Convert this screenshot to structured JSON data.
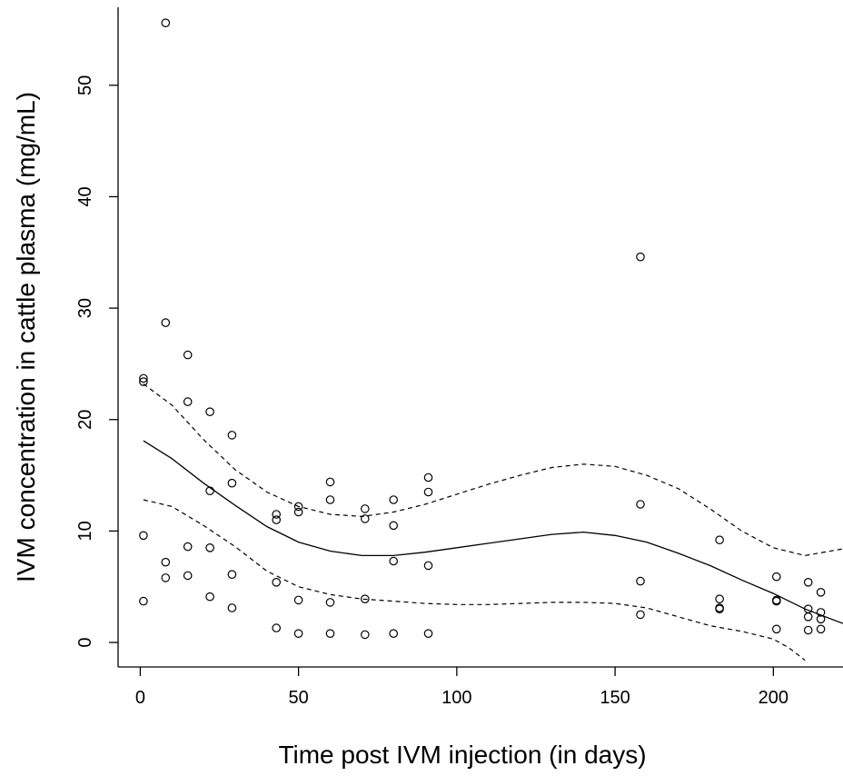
{
  "chart_data": {
    "type": "scatter",
    "xlabel": "Time post IVM injection (in days)",
    "ylabel": "IVM concentration in cattle plasma (mg/mL)",
    "xlim": [
      -7,
      222
    ],
    "ylim": [
      -2.2,
      57
    ],
    "x_ticks": [
      0,
      50,
      100,
      150,
      200
    ],
    "y_ticks": [
      0,
      10,
      20,
      30,
      40,
      50
    ],
    "grid": false,
    "legend": "none",
    "points": [
      [
        1,
        23.7
      ],
      [
        1,
        23.4
      ],
      [
        1,
        9.6
      ],
      [
        1,
        3.7
      ],
      [
        8,
        55.6
      ],
      [
        8,
        28.7
      ],
      [
        8,
        7.2
      ],
      [
        8,
        5.8
      ],
      [
        15,
        25.8
      ],
      [
        15,
        21.6
      ],
      [
        15,
        8.6
      ],
      [
        15,
        6.0
      ],
      [
        22,
        20.7
      ],
      [
        22,
        13.6
      ],
      [
        22,
        8.5
      ],
      [
        22,
        4.1
      ],
      [
        29,
        18.6
      ],
      [
        29,
        14.3
      ],
      [
        29,
        6.1
      ],
      [
        29,
        3.1
      ],
      [
        43,
        11.5
      ],
      [
        43,
        11.0
      ],
      [
        43,
        5.4
      ],
      [
        43,
        1.3
      ],
      [
        50,
        12.2
      ],
      [
        50,
        11.7
      ],
      [
        50,
        3.8
      ],
      [
        50,
        0.8
      ],
      [
        60,
        14.4
      ],
      [
        60,
        12.8
      ],
      [
        60,
        3.6
      ],
      [
        60,
        0.8
      ],
      [
        71,
        12.0
      ],
      [
        71,
        11.1
      ],
      [
        71,
        3.9
      ],
      [
        71,
        0.7
      ],
      [
        80,
        12.8
      ],
      [
        80,
        10.5
      ],
      [
        80,
        7.3
      ],
      [
        80,
        0.8
      ],
      [
        91,
        14.8
      ],
      [
        91,
        13.5
      ],
      [
        91,
        6.9
      ],
      [
        91,
        0.8
      ],
      [
        158,
        34.6
      ],
      [
        158,
        12.4
      ],
      [
        158,
        5.5
      ],
      [
        158,
        2.5
      ],
      [
        183,
        9.2
      ],
      [
        183,
        3.9
      ],
      [
        183,
        3.1
      ],
      [
        183,
        3.0
      ],
      [
        201,
        5.9
      ],
      [
        201,
        3.8
      ],
      [
        201,
        3.7
      ],
      [
        201,
        1.2
      ],
      [
        211,
        5.4
      ],
      [
        211,
        3.0
      ],
      [
        211,
        2.3
      ],
      [
        211,
        1.1
      ],
      [
        215,
        4.5
      ],
      [
        215,
        2.7
      ],
      [
        215,
        2.1
      ],
      [
        215,
        1.2
      ]
    ],
    "series": [
      {
        "style": "solid",
        "points": [
          [
            1,
            18.1
          ],
          [
            10,
            16.5
          ],
          [
            20,
            14.3
          ],
          [
            30,
            12.3
          ],
          [
            40,
            10.4
          ],
          [
            50,
            9.0
          ],
          [
            60,
            8.2
          ],
          [
            70,
            7.8
          ],
          [
            80,
            7.8
          ],
          [
            90,
            8.1
          ],
          [
            100,
            8.5
          ],
          [
            110,
            8.9
          ],
          [
            120,
            9.3
          ],
          [
            130,
            9.7
          ],
          [
            140,
            9.9
          ],
          [
            150,
            9.6
          ],
          [
            160,
            9.0
          ],
          [
            170,
            8.0
          ],
          [
            180,
            6.9
          ],
          [
            190,
            5.6
          ],
          [
            200,
            4.4
          ],
          [
            210,
            3.0
          ],
          [
            222,
            1.7
          ]
        ]
      },
      {
        "style": "dashed",
        "points": [
          [
            1,
            23.2
          ],
          [
            10,
            21.3
          ],
          [
            20,
            18.2
          ],
          [
            30,
            15.5
          ],
          [
            40,
            13.5
          ],
          [
            50,
            12.2
          ],
          [
            60,
            11.5
          ],
          [
            70,
            11.3
          ],
          [
            80,
            11.7
          ],
          [
            90,
            12.4
          ],
          [
            100,
            13.3
          ],
          [
            110,
            14.2
          ],
          [
            120,
            15.0
          ],
          [
            130,
            15.7
          ],
          [
            140,
            16.0
          ],
          [
            150,
            15.8
          ],
          [
            160,
            15.0
          ],
          [
            170,
            13.8
          ],
          [
            180,
            12.0
          ],
          [
            190,
            10.0
          ],
          [
            200,
            8.5
          ],
          [
            210,
            7.8
          ],
          [
            222,
            8.4
          ]
        ]
      },
      {
        "style": "dashed",
        "points": [
          [
            1,
            12.8
          ],
          [
            10,
            12.2
          ],
          [
            20,
            10.5
          ],
          [
            30,
            8.6
          ],
          [
            40,
            6.4
          ],
          [
            50,
            5.0
          ],
          [
            60,
            4.3
          ],
          [
            70,
            3.9
          ],
          [
            80,
            3.7
          ],
          [
            90,
            3.5
          ],
          [
            100,
            3.4
          ],
          [
            110,
            3.4
          ],
          [
            120,
            3.5
          ],
          [
            130,
            3.6
          ],
          [
            140,
            3.6
          ],
          [
            150,
            3.5
          ],
          [
            160,
            3.1
          ],
          [
            170,
            2.3
          ],
          [
            180,
            1.5
          ],
          [
            190,
            1.0
          ],
          [
            200,
            0.3
          ],
          [
            205,
            -0.5
          ],
          [
            210,
            -1.6
          ]
        ]
      }
    ]
  }
}
